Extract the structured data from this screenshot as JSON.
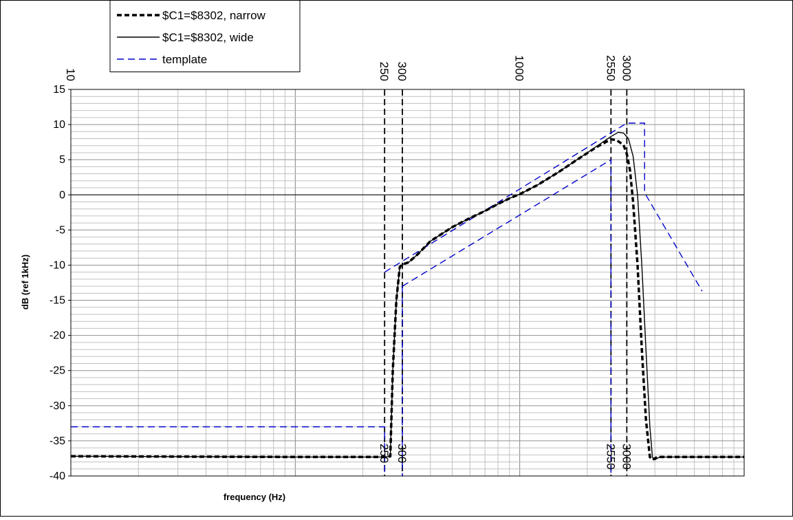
{
  "chart_data": {
    "type": "line",
    "title": "",
    "xlabel": "frequency (Hz)",
    "ylabel": "dB (ref 1kHz)",
    "xscale": "log",
    "xlim": [
      10,
      10000
    ],
    "ylim": [
      -40,
      15
    ],
    "yticks": [
      15,
      10,
      5,
      0,
      -5,
      -10,
      -15,
      -20,
      -25,
      -30,
      -35,
      -40
    ],
    "top_tick_labels": [
      "10",
      "250",
      "300",
      "1000",
      "2550",
      "3000"
    ],
    "marker_labels": [
      "250",
      "300",
      "2550",
      "3000"
    ],
    "grid": true,
    "legend_position": "top-left",
    "colors": {
      "narrow": "#000000",
      "wide": "#000000",
      "template": "#0000cc",
      "grid": "#c0c0c0",
      "marker": "#000000"
    },
    "series": [
      {
        "name": "$C1=$8302, narrow",
        "style": "dashed-thick",
        "points": [
          [
            10,
            -37.2
          ],
          [
            100,
            -37.3
          ],
          [
            250,
            -37.3
          ],
          [
            265,
            -37.2
          ],
          [
            272,
            -25
          ],
          [
            282,
            -15
          ],
          [
            292,
            -10.3
          ],
          [
            300,
            -9.9
          ],
          [
            320,
            -9.6
          ],
          [
            350,
            -8.5
          ],
          [
            400,
            -6.6
          ],
          [
            500,
            -4.6
          ],
          [
            600,
            -3.3
          ],
          [
            700,
            -2.3
          ],
          [
            800,
            -1.3
          ],
          [
            900,
            -0.5
          ],
          [
            1000,
            0.1
          ],
          [
            1200,
            1.4
          ],
          [
            1500,
            3.3
          ],
          [
            1800,
            5
          ],
          [
            2200,
            6.8
          ],
          [
            2550,
            7.9
          ],
          [
            2700,
            7.8
          ],
          [
            2900,
            7.1
          ],
          [
            3000,
            5.8
          ],
          [
            3100,
            3.5
          ],
          [
            3200,
            -1
          ],
          [
            3350,
            -10
          ],
          [
            3500,
            -22
          ],
          [
            3650,
            -32
          ],
          [
            3800,
            -37.3
          ],
          [
            3900,
            -37.7
          ],
          [
            4100,
            -37.3
          ],
          [
            5000,
            -37.3
          ],
          [
            10000,
            -37.3
          ]
        ]
      },
      {
        "name": "$C1=$8302, wide",
        "style": "solid",
        "points": [
          [
            10,
            -37.2
          ],
          [
            100,
            -37.3
          ],
          [
            250,
            -37.3
          ],
          [
            265,
            -37.2
          ],
          [
            272,
            -25
          ],
          [
            282,
            -15
          ],
          [
            292,
            -10.3
          ],
          [
            300,
            -9.9
          ],
          [
            320,
            -9.6
          ],
          [
            350,
            -8.5
          ],
          [
            400,
            -6.6
          ],
          [
            500,
            -4.6
          ],
          [
            600,
            -3.3
          ],
          [
            700,
            -2.3
          ],
          [
            800,
            -1.3
          ],
          [
            900,
            -0.5
          ],
          [
            1000,
            0.1
          ],
          [
            1200,
            1.4
          ],
          [
            1500,
            3.3
          ],
          [
            1800,
            5
          ],
          [
            2200,
            6.9
          ],
          [
            2550,
            8.3
          ],
          [
            2750,
            8.9
          ],
          [
            2900,
            8.8
          ],
          [
            3050,
            8
          ],
          [
            3200,
            5.5
          ],
          [
            3350,
            0
          ],
          [
            3500,
            -10
          ],
          [
            3650,
            -22
          ],
          [
            3800,
            -33
          ],
          [
            3900,
            -37.3
          ],
          [
            4000,
            -37.7
          ],
          [
            4200,
            -37.3
          ],
          [
            5000,
            -37.3
          ],
          [
            10000,
            -37.3
          ]
        ]
      },
      {
        "name": "template",
        "style": "dashed-blue",
        "segments": [
          [
            [
              10,
              -33
            ],
            [
              250,
              -33
            ],
            [
              250,
              -40
            ]
          ],
          [
            [
              250,
              -11
            ],
            [
              3000,
              10.2
            ],
            [
              3600,
              10.2
            ],
            [
              3600,
              0.3
            ],
            [
              6500,
              -13.7
            ]
          ],
          [
            [
              300,
              -13
            ],
            [
              2550,
              5
            ],
            [
              2550,
              -40
            ]
          ],
          [
            [
              300,
              -13
            ],
            [
              300,
              -40
            ]
          ]
        ]
      }
    ],
    "vertical_markers": [
      250,
      300,
      2550,
      3000
    ]
  }
}
